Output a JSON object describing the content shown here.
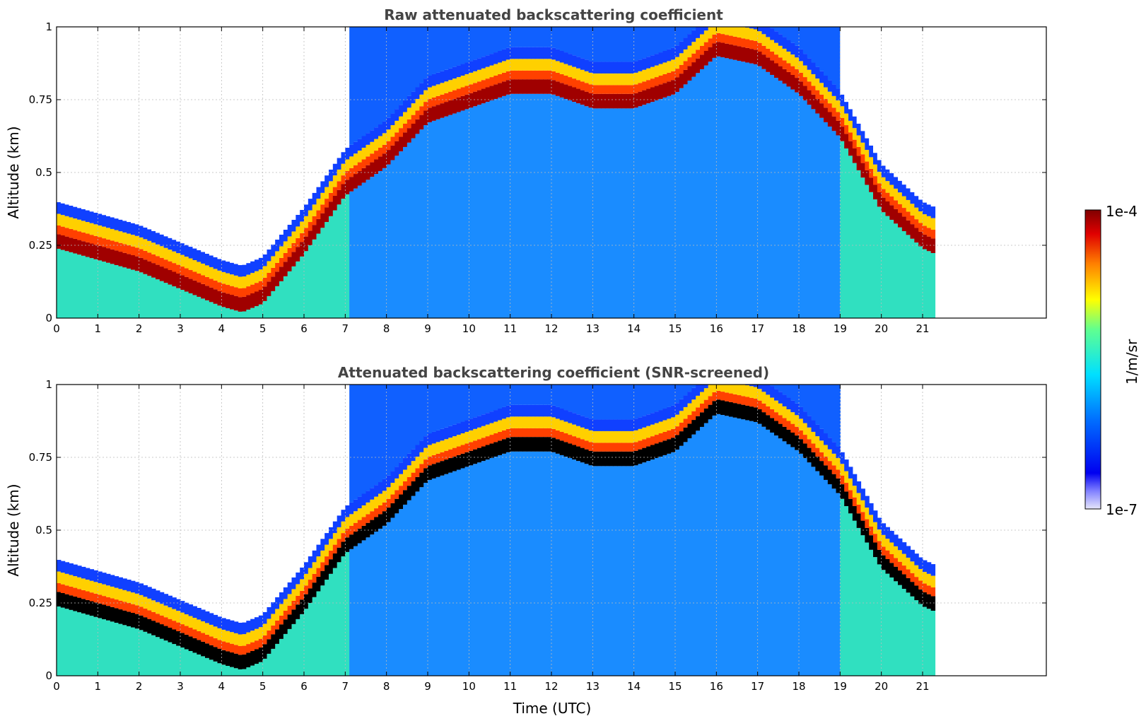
{
  "chart_data": [
    {
      "type": "heatmap",
      "title": "Raw attenuated backscattering coefficient",
      "xlabel": "",
      "ylabel": "Altitude (km)",
      "xlim": [
        0,
        24
      ],
      "ylim": [
        0,
        1
      ],
      "x_ticks": [
        "0",
        "1",
        "2",
        "3",
        "4",
        "5",
        "6",
        "7",
        "8",
        "9",
        "10",
        "11",
        "12",
        "13",
        "14",
        "15",
        "16",
        "17",
        "18",
        "19",
        "20",
        "21"
      ],
      "y_ticks": [
        "0",
        "0.25",
        "0.5",
        "0.75",
        "1"
      ],
      "data_end_time_utc": 21.3,
      "boundary_layer_top_km": {
        "time_utc": [
          0,
          1,
          2,
          3,
          4,
          4.5,
          5,
          6,
          7,
          8,
          9,
          10,
          11,
          12,
          13,
          14,
          15,
          16,
          17,
          18,
          19,
          20,
          21,
          21.3
        ],
        "altitude_km": [
          0.32,
          0.28,
          0.24,
          0.18,
          0.12,
          0.1,
          0.13,
          0.3,
          0.5,
          0.6,
          0.75,
          0.8,
          0.85,
          0.85,
          0.8,
          0.8,
          0.85,
          0.98,
          0.95,
          0.85,
          0.7,
          0.45,
          0.32,
          0.3
        ]
      },
      "grid": true,
      "screened": false
    },
    {
      "type": "heatmap",
      "title": "Attenuated backscattering coefficient (SNR-screened)",
      "xlabel": "Time (UTC)",
      "ylabel": "Altitude (km)",
      "xlim": [
        0,
        24
      ],
      "ylim": [
        0,
        1
      ],
      "x_ticks": [
        "0",
        "1",
        "2",
        "3",
        "4",
        "5",
        "6",
        "7",
        "8",
        "9",
        "10",
        "11",
        "12",
        "13",
        "14",
        "15",
        "16",
        "17",
        "18",
        "19",
        "20",
        "21"
      ],
      "y_ticks": [
        "0",
        "0.25",
        "0.5",
        "0.75",
        "1"
      ],
      "data_end_time_utc": 21.3,
      "grid": true,
      "screened": true
    }
  ],
  "colorbar": {
    "max_label": "1e-4",
    "min_label": "1e-7",
    "unit_label": "1/m/sr",
    "colormap": "jet",
    "scale": "log",
    "range": [
      1e-07,
      0.0001
    ]
  },
  "colors": {
    "title": "#444444",
    "grid": "#bbbbbb",
    "saturated": "#000000"
  }
}
